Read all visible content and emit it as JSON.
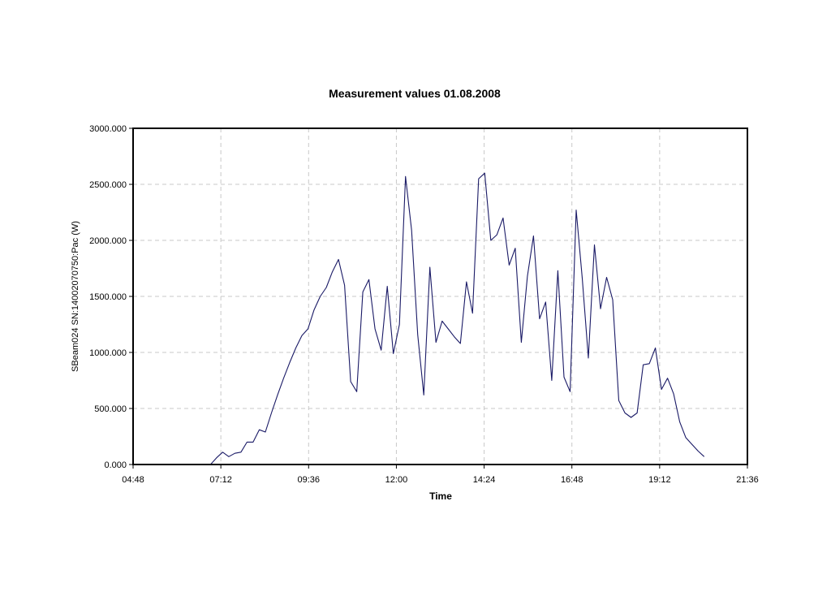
{
  "chart_data": {
    "type": "line",
    "title": "Measurement values 01.08.2008",
    "xlabel": "Time",
    "ylabel": "SBeam024 SN:14002070750:Pac (W)",
    "x_ticks": [
      "04:48",
      "07:12",
      "09:36",
      "12:00",
      "14:24",
      "16:48",
      "19:12",
      "21:36"
    ],
    "y_ticks": [
      "0.000",
      "500.000",
      "1000.000",
      "1500.000",
      "2000.000",
      "2500.000",
      "3000.000"
    ],
    "xlim": [
      "04:48",
      "21:36"
    ],
    "ylim": [
      0,
      3000
    ],
    "grid": true,
    "colors": {
      "line": "#1a1a66",
      "grid": "#c8c8c8"
    },
    "series": [
      {
        "x": [
          "06:55",
          "07:05",
          "07:15",
          "07:25",
          "07:35",
          "07:45",
          "07:55",
          "08:05",
          "08:15",
          "08:25",
          "08:35",
          "08:45",
          "08:55",
          "09:05",
          "09:15",
          "09:25",
          "09:35",
          "09:45",
          "09:55",
          "10:05",
          "10:15",
          "10:25",
          "10:35",
          "10:45",
          "10:55",
          "11:05",
          "11:15",
          "11:25",
          "11:35",
          "11:45",
          "11:55",
          "12:05",
          "12:15",
          "12:25",
          "12:35",
          "12:45",
          "12:55",
          "13:05",
          "13:15",
          "13:25",
          "13:35",
          "13:45",
          "13:55",
          "14:05",
          "14:15",
          "14:25",
          "14:35",
          "14:45",
          "14:55",
          "15:05",
          "15:15",
          "15:25",
          "15:35",
          "15:45",
          "15:55",
          "16:05",
          "16:15",
          "16:25",
          "16:35",
          "16:45",
          "16:55",
          "17:05",
          "17:15",
          "17:25",
          "17:35",
          "17:45",
          "17:55",
          "18:05",
          "18:15",
          "18:25",
          "18:35",
          "18:45",
          "18:55",
          "19:05",
          "19:15",
          "19:25",
          "19:35",
          "19:45",
          "19:55",
          "20:05",
          "20:15",
          "20:25"
        ],
        "values": [
          0,
          60,
          110,
          70,
          100,
          110,
          200,
          200,
          310,
          290,
          460,
          620,
          770,
          910,
          1040,
          1150,
          1210,
          1380,
          1500,
          1580,
          1720,
          1830,
          1600,
          740,
          650,
          1540,
          1650,
          1210,
          1020,
          1590,
          990,
          1250,
          2570,
          2090,
          1160,
          620,
          1760,
          1090,
          1280,
          1210,
          1140,
          1080,
          1630,
          1350,
          2550,
          2600,
          2000,
          2050,
          2200,
          1780,
          1930,
          1090,
          1680,
          2040,
          1300,
          1450,
          750,
          1730,
          780,
          650,
          2270,
          1660,
          950,
          1960,
          1390,
          1670,
          1470,
          570,
          460,
          420,
          460,
          890,
          900,
          1040,
          670,
          770,
          630,
          380,
          240,
          180,
          120,
          70
        ]
      }
    ]
  }
}
